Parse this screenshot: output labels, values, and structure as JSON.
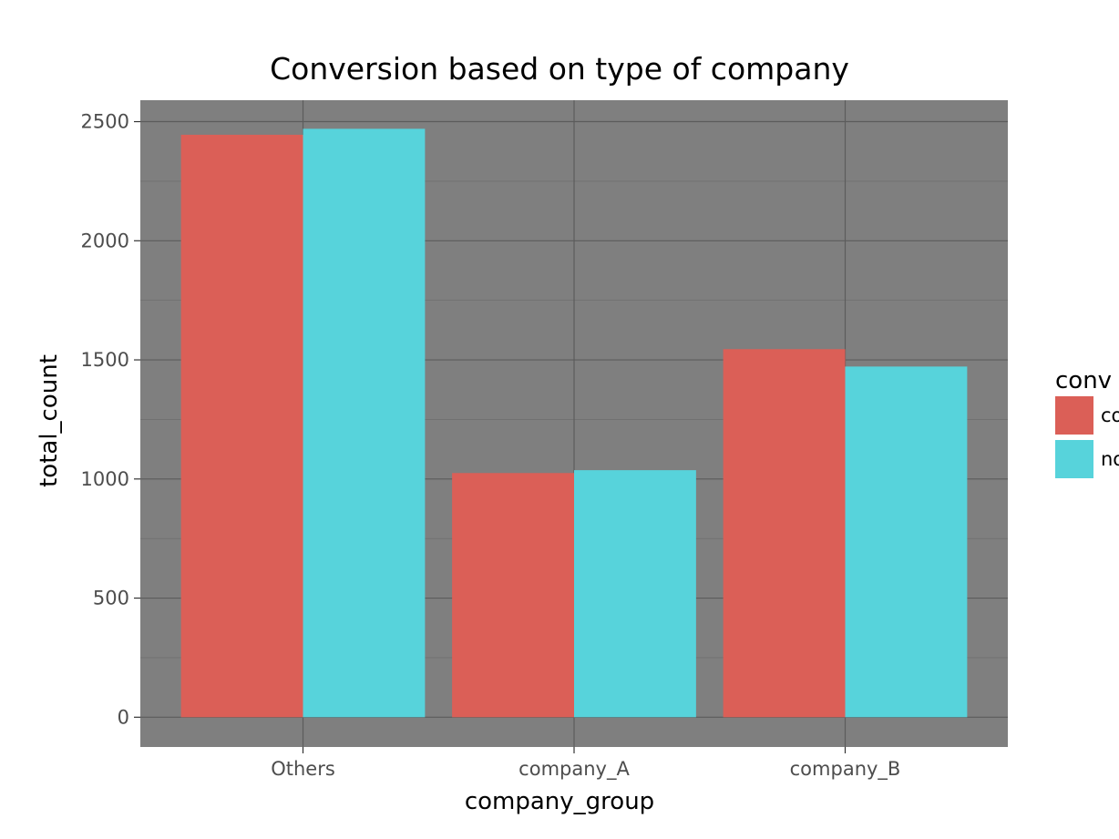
{
  "chart_data": {
    "type": "bar",
    "title": "Conversion based on type of company",
    "xlabel": "company_group",
    "ylabel": "total_count",
    "categories": [
      "Others",
      "company_A",
      "company_B"
    ],
    "series": [
      {
        "name": "co",
        "color": "#db5f57",
        "values": [
          2445,
          1025,
          1545
        ]
      },
      {
        "name": "no",
        "color": "#57d3db",
        "values": [
          2470,
          1037,
          1472
        ]
      }
    ],
    "ylim": [
      -125,
      2590
    ],
    "yticks": [
      0,
      500,
      1000,
      1500,
      2000,
      2500
    ],
    "yticks_minor": [
      250,
      750,
      1250,
      1750,
      2250
    ],
    "grid": true,
    "panel_color": "#7f7f7f",
    "grid_color": "#5c5c5c",
    "legend": {
      "title": "conv",
      "position": "right",
      "entries": [
        "co",
        "no"
      ]
    }
  }
}
